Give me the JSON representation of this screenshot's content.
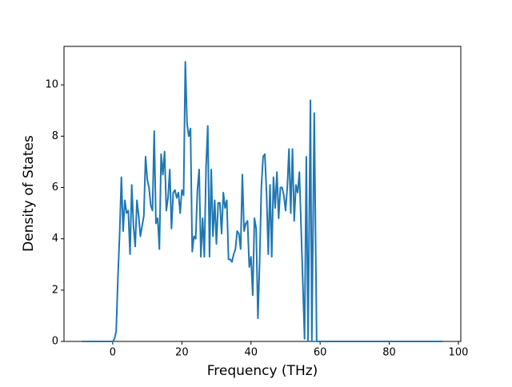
{
  "chart_data": {
    "type": "line",
    "xlabel": "Frequency (THz)",
    "ylabel": "Density of States",
    "xlim": [
      -14.1,
      100.7
    ],
    "ylim": [
      0,
      11.5
    ],
    "xticks": [
      0,
      20,
      40,
      60,
      80,
      100
    ],
    "yticks": [
      0,
      2,
      4,
      6,
      8,
      10
    ],
    "x": [
      -9,
      0,
      0.5,
      1,
      1.5,
      2,
      2.5,
      3,
      3.5,
      4,
      4.5,
      5,
      5.5,
      6,
      6.5,
      7,
      7.5,
      8,
      8.5,
      9,
      9.5,
      10,
      10.5,
      11,
      11.5,
      12,
      12.5,
      13,
      13.5,
      14,
      14.5,
      15,
      15.5,
      16,
      16.5,
      17,
      17.5,
      18,
      18.5,
      19,
      19.5,
      20,
      20.5,
      21,
      21.5,
      22,
      22.5,
      23,
      23.5,
      24,
      24.5,
      25,
      25.5,
      26,
      26.5,
      27,
      27.5,
      28,
      28.5,
      29,
      29.5,
      30,
      30.5,
      31,
      31.5,
      32,
      32.5,
      33,
      33.5,
      34,
      34.5,
      35,
      35.5,
      36,
      36.5,
      37,
      37.5,
      38,
      38.5,
      39,
      39.5,
      40,
      40.5,
      41,
      41.5,
      42,
      42.5,
      43,
      43.5,
      44,
      44.5,
      45,
      45.5,
      46,
      46.5,
      47,
      47.5,
      48,
      48.5,
      49,
      49.5,
      50,
      50.5,
      51,
      51.5,
      52,
      52.5,
      53,
      53.5,
      54,
      55.5,
      56,
      56.5,
      57.2,
      57.6,
      58.3,
      59,
      95.5
    ],
    "series": [
      {
        "color": "#1f77b4",
        "values": [
          0,
          0,
          0.1,
          0.4,
          2.5,
          4.2,
          6.4,
          4.3,
          5.5,
          5,
          5.1,
          3.4,
          6.1,
          4.5,
          3.7,
          5.5,
          4.9,
          4.1,
          4.5,
          4.9,
          7.2,
          6.3,
          6,
          5.3,
          5.1,
          8.2,
          4.6,
          4.8,
          3.6,
          7.3,
          6.5,
          7.4,
          5.1,
          5.6,
          6.7,
          4.4,
          5.8,
          5.9,
          5.6,
          5.8,
          5,
          5.9,
          5.7,
          10.9,
          8.5,
          8,
          8.3,
          3.5,
          4.1,
          4,
          5.9,
          6.7,
          3.3,
          4.8,
          3.3,
          6.8,
          8.4,
          3.3,
          6.7,
          4.1,
          5.5,
          3.8,
          5.4,
          5.4,
          4.2,
          5.8,
          5.2,
          5.5,
          3.2,
          3.2,
          3.1,
          3.4,
          3.6,
          4.3,
          4.2,
          3.6,
          6.5,
          4.3,
          4.6,
          4.7,
          2.9,
          3.3,
          1.8,
          4.8,
          4.4,
          0.9,
          3.1,
          6,
          7.2,
          7.3,
          5.8,
          3.4,
          6.1,
          3.3,
          6.4,
          5.2,
          6.6,
          4.8,
          6,
          6,
          5.7,
          5.1,
          6,
          7.5,
          5,
          7.5,
          4.7,
          6.1,
          5.8,
          6.6,
          0.1,
          7.2,
          0,
          9.4,
          0,
          8.9,
          0,
          0
        ]
      }
    ]
  }
}
